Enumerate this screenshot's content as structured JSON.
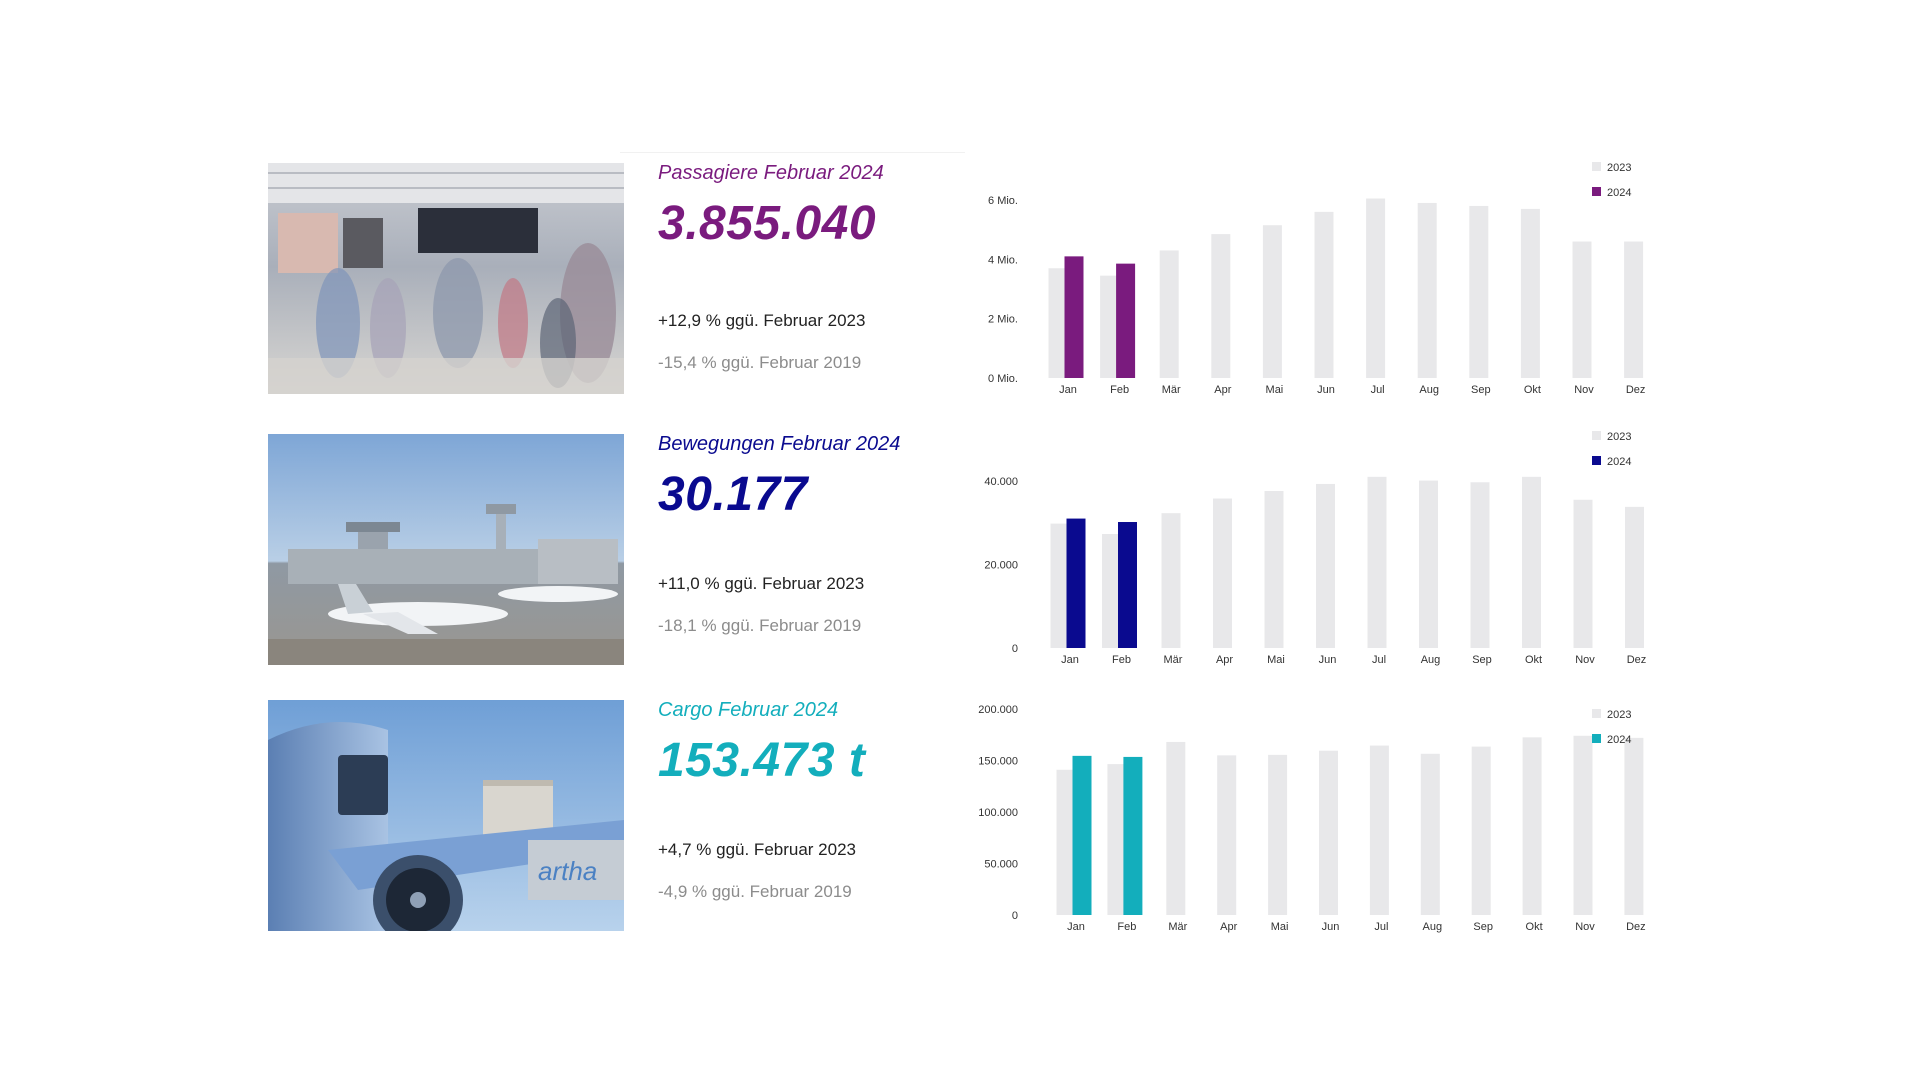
{
  "colors": {
    "prev_year": "#e8e8ea",
    "passengers": "#7a1b7e",
    "movements": "#0a0a8f",
    "cargo": "#13aebc"
  },
  "sections": [
    {
      "id": "passengers",
      "title": "Passagiere Februar 2024",
      "value": "3.855.040",
      "cmp_prev": "+12,9 % ggü. Februar 2023",
      "cmp_2019": "-15,4 % ggü. Februar 2019",
      "photo": "airport-terminal-crowd-image"
    },
    {
      "id": "movements",
      "title": "Bewegungen Februar 2024",
      "value": "30.177",
      "cmp_prev": "+11,0 % ggü. Februar 2023",
      "cmp_2019": "-18,1 % ggü. Februar 2019",
      "photo": "airplanes-at-airport-image"
    },
    {
      "id": "cargo",
      "title": "Cargo Februar 2024",
      "value": "153.473 t",
      "cmp_prev": "+4,7 % ggü. Februar 2023",
      "cmp_2019": "-4,9 % ggü. Februar 2019",
      "photo": "cargo-loading-aircraft-image"
    }
  ],
  "chart_data": [
    {
      "type": "bar",
      "categories": [
        "Jan",
        "Feb",
        "Mär",
        "Apr",
        "Mai",
        "Jun",
        "Jul",
        "Aug",
        "Sep",
        "Okt",
        "Nov",
        "Dez"
      ],
      "ylim": [
        0,
        6000000
      ],
      "yticks": [
        0,
        2000000,
        4000000,
        6000000
      ],
      "ytick_labels": [
        "0 Mio.",
        "2 Mio.",
        "4 Mio.",
        "6 Mio."
      ],
      "legend_position": "top-right",
      "series": [
        {
          "name": "2023",
          "values": [
            3700000,
            3450000,
            4300000,
            4850000,
            5150000,
            5600000,
            6050000,
            5900000,
            5800000,
            5700000,
            4600000,
            4600000
          ]
        },
        {
          "name": "2024",
          "values": [
            4100000,
            3855040,
            null,
            null,
            null,
            null,
            null,
            null,
            null,
            null,
            null,
            null
          ]
        }
      ]
    },
    {
      "type": "bar",
      "categories": [
        "Jan",
        "Feb",
        "Mär",
        "Apr",
        "Mai",
        "Jun",
        "Jul",
        "Aug",
        "Sep",
        "Okt",
        "Nov",
        "Dez"
      ],
      "ylim": [
        0,
        40000
      ],
      "yticks": [
        0,
        20000,
        40000
      ],
      "ytick_labels": [
        "0",
        "20.000",
        "40.000"
      ],
      "legend_position": "top-right",
      "series": [
        {
          "name": "2023",
          "values": [
            29800,
            27300,
            32300,
            35800,
            37600,
            39300,
            41000,
            40100,
            39700,
            41000,
            35500,
            33800
          ]
        },
        {
          "name": "2024",
          "values": [
            31000,
            30177,
            null,
            null,
            null,
            null,
            null,
            null,
            null,
            null,
            null,
            null
          ]
        }
      ]
    },
    {
      "type": "bar",
      "categories": [
        "Jan",
        "Feb",
        "Mär",
        "Apr",
        "Mai",
        "Jun",
        "Jul",
        "Aug",
        "Sep",
        "Okt",
        "Nov",
        "Dez"
      ],
      "ylim": [
        0,
        200000
      ],
      "yticks": [
        0,
        50000,
        100000,
        150000,
        200000
      ],
      "ytick_labels": [
        "0",
        "50.000",
        "100.000",
        "150.000",
        "200.000"
      ],
      "legend_position": "top-right",
      "series": [
        {
          "name": "2023",
          "values": [
            141000,
            146500,
            168000,
            155000,
            155500,
            159500,
            164500,
            156500,
            163500,
            172500,
            174000,
            172000
          ]
        },
        {
          "name": "2024",
          "values": [
            154500,
            153473,
            null,
            null,
            null,
            null,
            null,
            null,
            null,
            null,
            null,
            null
          ]
        }
      ]
    }
  ]
}
